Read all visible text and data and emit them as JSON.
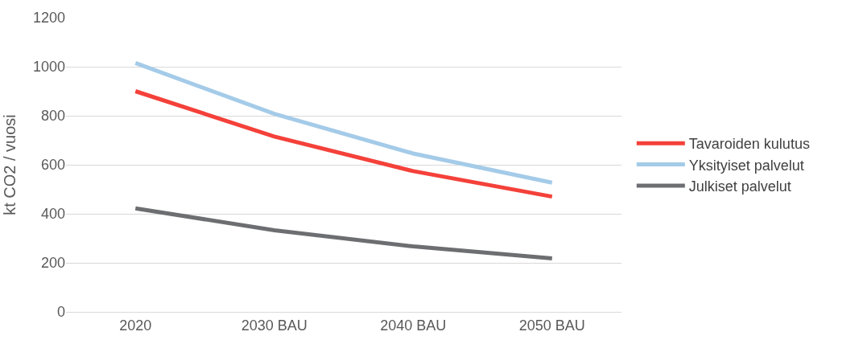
{
  "chart_data": {
    "type": "line",
    "ylabel": "kt CO2 / vuosi",
    "categories": [
      "2020",
      "2030 BAU",
      "2040 BAU",
      "2050 BAU"
    ],
    "series": [
      {
        "name": "Tavaroiden kulutus",
        "color": "#f4413a",
        "values": [
          900,
          715,
          574,
          470
        ]
      },
      {
        "name": "Yksityiset palvelut",
        "color": "#a4cbe8",
        "values": [
          1015,
          808,
          646,
          527
        ]
      },
      {
        "name": "Julkiset palvelut",
        "color": "#6d6e71",
        "values": [
          422,
          333,
          267,
          218
        ]
      }
    ],
    "ylim": [
      0,
      1200
    ],
    "yticks": [
      0,
      200,
      400,
      600,
      800,
      1000,
      1200
    ],
    "grid": "y",
    "legend": "right",
    "marker": "none",
    "line_style": "solid"
  }
}
